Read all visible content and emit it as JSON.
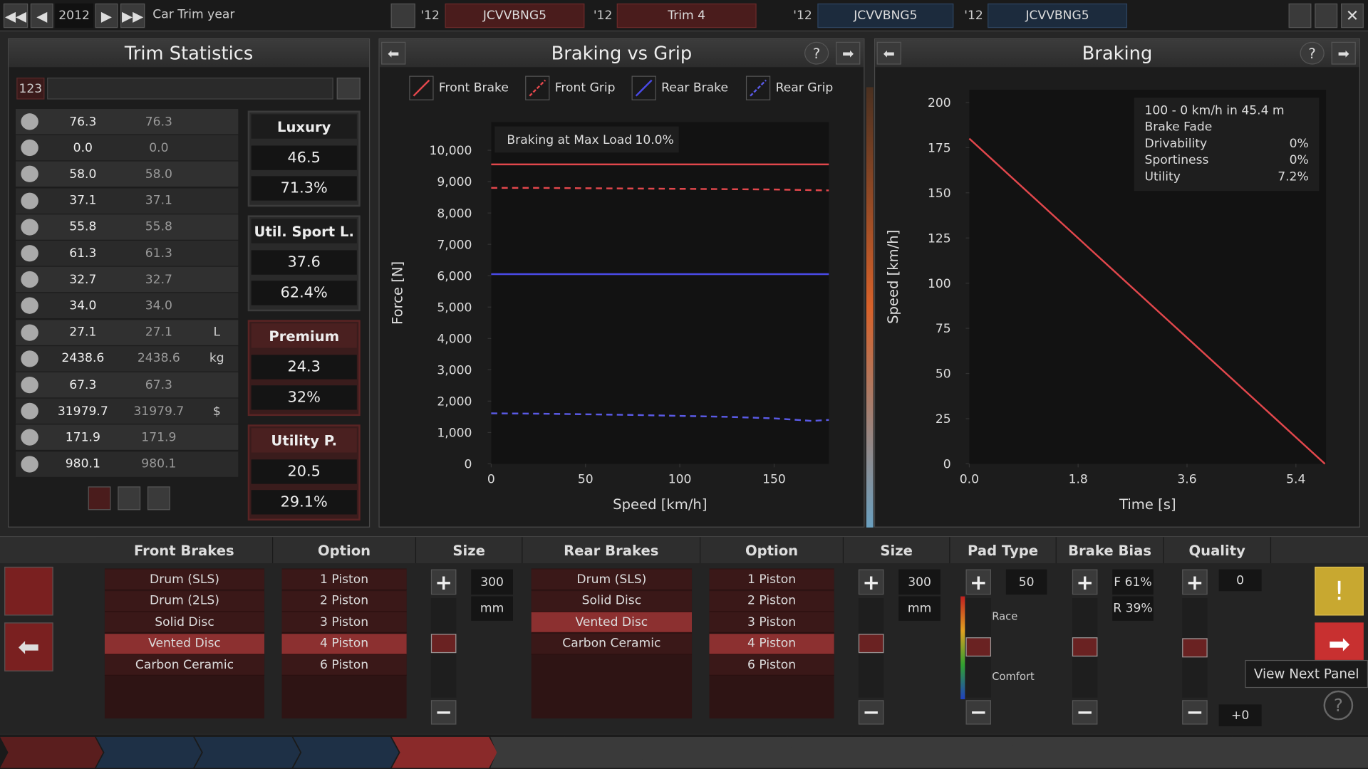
{
  "top_bar": {
    "year": "2012",
    "label": "Car Trim year",
    "tabs": [
      {
        "year": "'12",
        "name": "JCVVBNG5"
      },
      {
        "year": "'12",
        "name": "Trim 4"
      },
      {
        "year": "'12",
        "name": "JCVVBNG5"
      },
      {
        "year": "'12",
        "name": "JCVVBNG5"
      }
    ]
  },
  "trim_statistics": {
    "title": "Trim Statistics",
    "id": "123",
    "rows": [
      {
        "a": "76.3",
        "b": "76.3"
      },
      {
        "a": "0.0",
        "b": "0.0"
      },
      {
        "a": "58.0",
        "b": "58.0"
      },
      {
        "a": "37.1",
        "b": "37.1"
      },
      {
        "a": "55.8",
        "b": "55.8"
      },
      {
        "a": "61.3",
        "b": "61.3"
      },
      {
        "a": "32.7",
        "b": "32.7"
      },
      {
        "a": "34.0",
        "b": "34.0"
      },
      {
        "a": "27.1",
        "b": "27.1",
        "unit": "L"
      },
      {
        "a": "2438.6",
        "b": "2438.6",
        "unit": "kg"
      },
      {
        "a": "67.3",
        "b": "67.3"
      },
      {
        "a": "31979.7",
        "b": "31979.7",
        "unit": "$"
      },
      {
        "a": "171.9",
        "b": "171.9"
      },
      {
        "a": "980.1",
        "b": "980.1"
      }
    ],
    "groups": [
      {
        "name": "Luxury",
        "value": "46.5",
        "pct": "71.3%"
      },
      {
        "name": "Util. Sport L.",
        "value": "37.6",
        "pct": "62.4%"
      },
      {
        "name": "Premium",
        "value": "24.3",
        "pct": "32%"
      },
      {
        "name": "Utility P.",
        "value": "20.5",
        "pct": "29.1%"
      }
    ]
  },
  "chart_data": [
    {
      "type": "line",
      "title": "Braking vs Grip",
      "xlabel": "Speed [km/h]",
      "ylabel": "Force [N]",
      "annotation": {
        "label": "Braking at Max Load",
        "value": "10.0%"
      },
      "x": [
        0,
        25,
        50,
        75,
        100,
        125,
        150,
        170,
        179
      ],
      "series": [
        {
          "name": "Front Brake",
          "color": "#e2474c",
          "dashed": false,
          "values": [
            9550,
            9550,
            9550,
            9550,
            9550,
            9550,
            9550,
            9550,
            9550
          ]
        },
        {
          "name": "Front Grip",
          "color": "#e2474c",
          "dashed": true,
          "values": [
            8800,
            8800,
            8790,
            8780,
            8770,
            8760,
            8750,
            8730,
            8720
          ]
        },
        {
          "name": "Rear Brake",
          "color": "#4a4ae6",
          "dashed": false,
          "values": [
            6050,
            6050,
            6050,
            6050,
            6050,
            6050,
            6050,
            6050,
            6050
          ]
        },
        {
          "name": "Rear Grip",
          "color": "#5a5ae6",
          "dashed": true,
          "values": [
            1610,
            1600,
            1580,
            1560,
            1530,
            1500,
            1450,
            1370,
            1400
          ]
        }
      ],
      "xlim": [
        0,
        179
      ],
      "ylim": [
        0,
        10900
      ],
      "xticks": [
        0,
        50,
        100,
        150
      ],
      "yticks": [
        0,
        {
          "value": 1000,
          "label": "1,000"
        },
        {
          "value": 2000,
          "label": "2,000"
        },
        {
          "value": 3000,
          "label": "3,000"
        },
        {
          "value": 4000,
          "label": "4,000"
        },
        {
          "value": 5000,
          "label": "5,000"
        },
        {
          "value": 6000,
          "label": "6,000"
        },
        {
          "value": 7000,
          "label": "7,000"
        },
        {
          "value": 8000,
          "label": "8,000"
        },
        {
          "value": 9000,
          "label": "9,000"
        },
        {
          "value": 10000,
          "label": "10,000"
        }
      ],
      "grid": false
    },
    {
      "type": "line",
      "title": "Braking",
      "xlabel": "Time [s]",
      "ylabel": "Speed [km/h]",
      "info": {
        "title": "100 - 0 km/h in 45.4 m",
        "subtitle": "Brake Fade",
        "rows": [
          {
            "name": "Drivability",
            "value": "0%"
          },
          {
            "name": "Sportiness",
            "value": "0%"
          },
          {
            "name": "Utility",
            "value": "7.2%"
          }
        ]
      },
      "x": [
        0,
        5.88
      ],
      "series": [
        {
          "color": "#e2474c",
          "dashed": false,
          "values": [
            180,
            0
          ]
        }
      ],
      "xlim": [
        0,
        5.9
      ],
      "ylim": [
        0,
        207
      ],
      "xticks": [
        {
          "value": 0,
          "label": "0.0"
        },
        1.8,
        3.6,
        5.4
      ],
      "yticks": [
        0,
        25,
        50,
        75,
        100,
        125,
        150,
        175,
        200
      ],
      "grid": false
    }
  ],
  "brakes": {
    "columns": [
      "Front Brakes",
      "Option",
      "Size",
      "Rear Brakes",
      "Option",
      "Size",
      "Pad Type",
      "Brake Bias",
      "Quality"
    ],
    "front_types": {
      "items": [
        "Drum (SLS)",
        "Drum (2LS)",
        "Solid Disc",
        "Vented Disc",
        "Carbon Ceramic"
      ],
      "selected": 3
    },
    "front_options": {
      "items": [
        "1 Piston",
        "2 Piston",
        "3 Piston",
        "4 Piston",
        "6 Piston"
      ],
      "selected": 3
    },
    "rear_types": {
      "items": [
        "Drum (SLS)",
        "Solid Disc",
        "Vented Disc",
        "Carbon Ceramic"
      ],
      "selected": 2
    },
    "rear_options": {
      "items": [
        "1 Piston",
        "2 Piston",
        "3 Piston",
        "4 Piston",
        "6 Piston"
      ],
      "selected": 3
    },
    "front_size": {
      "value": "300",
      "unit": "mm"
    },
    "rear_size": {
      "value": "300",
      "unit": "mm"
    },
    "pad_type": {
      "value": "50",
      "high": "Race",
      "low": "Comfort"
    },
    "brake_bias": {
      "front": "F 61%",
      "rear": "R 39%"
    },
    "quality": {
      "value": "0",
      "offset": "+0"
    },
    "tooltip": "View Next Panel"
  }
}
